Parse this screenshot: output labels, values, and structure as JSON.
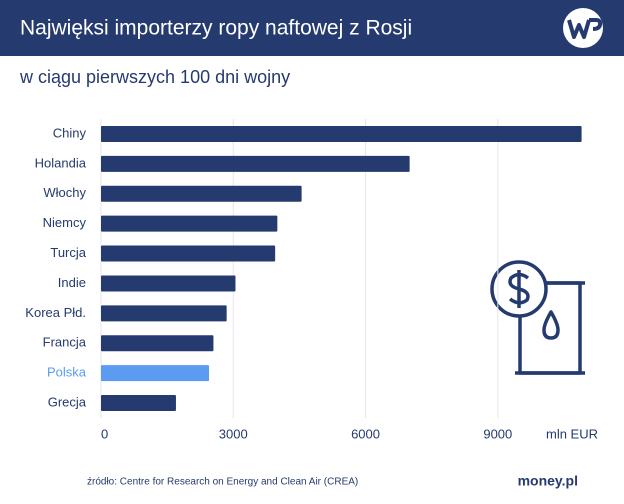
{
  "chart_data": {
    "type": "hbar",
    "title": "Najwięksi importerzy ropy naftowej z Rosji",
    "subtitle": "w ciągu pierwszych 100 dni wojny",
    "categories": [
      "Chiny",
      "Holandia",
      "Włochy",
      "Niemcy",
      "Turcja",
      "Indie",
      "Korea Płd.",
      "Francja",
      "Polska",
      "Grecja"
    ],
    "values": [
      10900,
      7000,
      4550,
      4000,
      3950,
      3050,
      2850,
      2550,
      2450,
      1700
    ],
    "colors": [
      "#253a6e",
      "#253a6e",
      "#253a6e",
      "#253a6e",
      "#253a6e",
      "#253a6e",
      "#253a6e",
      "#253a6e",
      "#5b9bf0",
      "#253a6e"
    ],
    "xlim": [
      0,
      11000
    ],
    "xticks": [
      0,
      3000,
      6000,
      9000
    ],
    "xlabel": "mln EUR",
    "grid": true,
    "source": "źródło: Centre for Research on Energy and Clean Air (CREA)",
    "brand": "money.pl"
  }
}
